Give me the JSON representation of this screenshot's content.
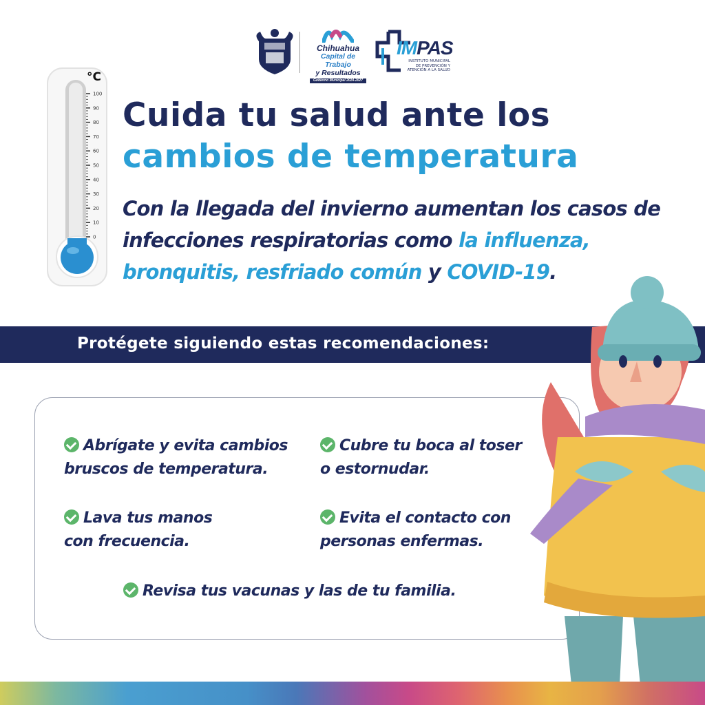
{
  "logos": {
    "chihuahua": {
      "line1": "Chihuahua",
      "line2": "Capital de Trabajo",
      "line3": "y Resultados",
      "line4": "Gobierno Municipal 2024-2027"
    },
    "impas": {
      "name_a": "IM",
      "name_b": "PAS",
      "subtitle": "INSTITUTO MUNICIPAL DE PREVENCIÓN Y ATENCIÓN A LA SALUD"
    }
  },
  "thermometer": {
    "unit": "°C",
    "ticks": [
      "100",
      "90",
      "80",
      "70",
      "60",
      "50",
      "40",
      "30",
      "20",
      "10",
      "0"
    ],
    "level_celsius": 0
  },
  "title": {
    "line1": "Cuida tu salud ante los",
    "line2": "cambios de temperatura"
  },
  "intro": {
    "text_a": "Con la llegada del invierno aumentan los casos de infecciones respiratorias como ",
    "highlight_a": "la influenza, bronquitis, resfriado común",
    "text_b": " y ",
    "highlight_b": "COVID-19",
    "text_c": "."
  },
  "banner": {
    "text": "Protégete siguiendo estas recomendaciones:"
  },
  "recommendations": [
    {
      "line1": "Abrígate y evita cambios",
      "line2": "bruscos de temperatura."
    },
    {
      "line1": "Cubre tu boca al toser",
      "line2": "o estornudar."
    },
    {
      "line1": "Lava tus manos",
      "line2": "con frecuencia."
    },
    {
      "line1": "Evita el contacto con",
      "line2": "personas enfermas."
    },
    {
      "line1": "Revisa tus vacunas y las de tu familia.",
      "line2": ""
    }
  ],
  "colors": {
    "navy": "#1f2a5c",
    "accent": "#2a9fd6",
    "check": "#5cb56a",
    "thermometer_bulb": "#2a8fd0"
  },
  "icons": [
    "coat-of-arms-logo",
    "chihuahua-logo",
    "impas-cross-logo",
    "thermometer",
    "check-circle-icon",
    "woman-in-winter-clothes-illustration"
  ]
}
